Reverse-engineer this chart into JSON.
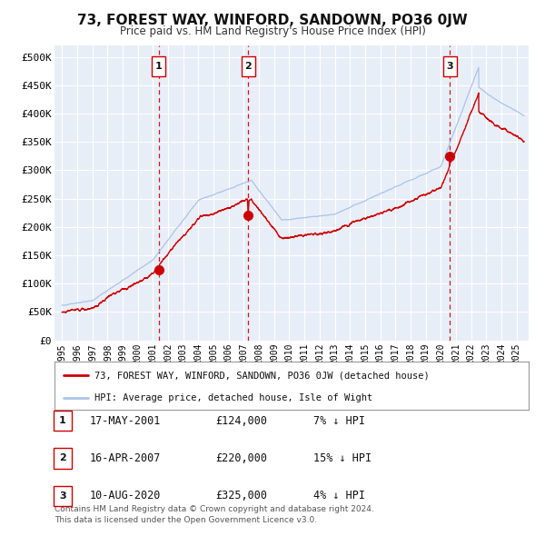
{
  "title": "73, FOREST WAY, WINFORD, SANDOWN, PO36 0JW",
  "subtitle": "Price paid vs. HM Land Registry's House Price Index (HPI)",
  "background_color": "#ffffff",
  "plot_bg_color": "#e8eef8",
  "grid_color": "#ffffff",
  "hpi_line_color": "#aac4e8",
  "price_line_color": "#cc0000",
  "sale_marker_color": "#cc0000",
  "vline_color": "#cc0000",
  "legend_label_price": "73, FOREST WAY, WINFORD, SANDOWN, PO36 0JW (detached house)",
  "legend_label_hpi": "HPI: Average price, detached house, Isle of Wight",
  "sales": [
    {
      "num": 1,
      "date_label": "17-MAY-2001",
      "price": 124000,
      "price_label": "£124,000",
      "pct": "7% ↓ HPI",
      "x": 2001.37
    },
    {
      "num": 2,
      "date_label": "16-APR-2007",
      "price": 220000,
      "price_label": "£220,000",
      "pct": "15% ↓ HPI",
      "x": 2007.29
    },
    {
      "num": 3,
      "date_label": "10-AUG-2020",
      "price": 325000,
      "price_label": "£325,000",
      "pct": "4% ↓ HPI",
      "x": 2020.61
    }
  ],
  "yticks": [
    0,
    50000,
    100000,
    150000,
    200000,
    250000,
    300000,
    350000,
    400000,
    450000,
    500000
  ],
  "ytick_labels": [
    "£0",
    "£50K",
    "£100K",
    "£150K",
    "£200K",
    "£250K",
    "£300K",
    "£350K",
    "£400K",
    "£450K",
    "£500K"
  ],
  "xlim": [
    1994.5,
    2025.8
  ],
  "ylim": [
    0,
    520000
  ],
  "xtick_years": [
    1995,
    1996,
    1997,
    1998,
    1999,
    2000,
    2001,
    2002,
    2003,
    2004,
    2005,
    2006,
    2007,
    2008,
    2009,
    2010,
    2011,
    2012,
    2013,
    2014,
    2015,
    2016,
    2017,
    2018,
    2019,
    2020,
    2021,
    2022,
    2023,
    2024,
    2025
  ],
  "footer_line1": "Contains HM Land Registry data © Crown copyright and database right 2024.",
  "footer_line2": "This data is licensed under the Open Government Licence v3.0."
}
